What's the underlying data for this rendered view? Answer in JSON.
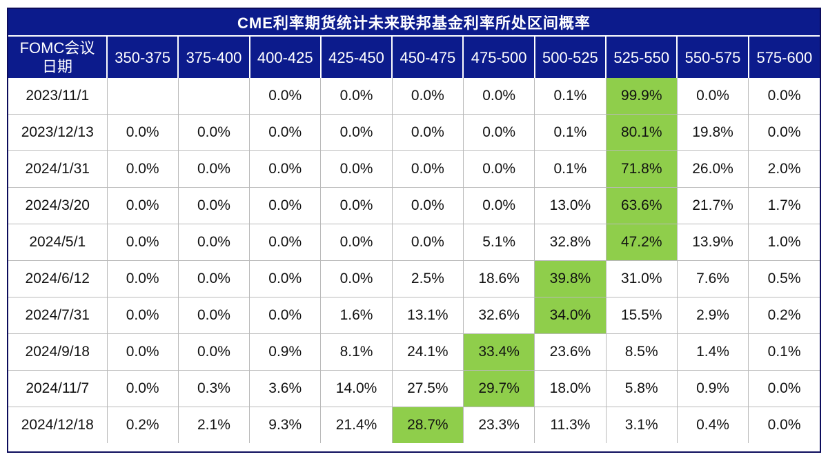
{
  "title": "CME利率期货统计未来联邦基金利率所处区间概率",
  "highlight_color": "#8fce4b",
  "header_color": "#0c1b8c",
  "chart_data": {
    "type": "table",
    "title": "CME利率期货统计未来联邦基金利率所处区间概率",
    "row_header_label": "FOMC会议日期",
    "columns": [
      "350-375",
      "375-400",
      "400-425",
      "425-450",
      "450-475",
      "475-500",
      "500-525",
      "525-550",
      "550-575",
      "575-600"
    ],
    "rows": [
      {
        "date": "2023/11/1",
        "values": [
          "",
          "",
          "0.0%",
          "0.0%",
          "0.0%",
          "0.0%",
          "0.1%",
          "99.9%",
          "0.0%",
          "0.0%"
        ],
        "max_index": 7
      },
      {
        "date": "2023/12/13",
        "values": [
          "0.0%",
          "0.0%",
          "0.0%",
          "0.0%",
          "0.0%",
          "0.0%",
          "0.1%",
          "80.1%",
          "19.8%",
          "0.0%"
        ],
        "max_index": 7
      },
      {
        "date": "2024/1/31",
        "values": [
          "0.0%",
          "0.0%",
          "0.0%",
          "0.0%",
          "0.0%",
          "0.0%",
          "0.1%",
          "71.8%",
          "26.0%",
          "2.0%"
        ],
        "max_index": 7
      },
      {
        "date": "2024/3/20",
        "values": [
          "0.0%",
          "0.0%",
          "0.0%",
          "0.0%",
          "0.0%",
          "0.0%",
          "13.0%",
          "63.6%",
          "21.7%",
          "1.7%"
        ],
        "max_index": 7
      },
      {
        "date": "2024/5/1",
        "values": [
          "0.0%",
          "0.0%",
          "0.0%",
          "0.0%",
          "0.0%",
          "5.1%",
          "32.8%",
          "47.2%",
          "13.9%",
          "1.0%"
        ],
        "max_index": 7
      },
      {
        "date": "2024/6/12",
        "values": [
          "0.0%",
          "0.0%",
          "0.0%",
          "0.0%",
          "2.5%",
          "18.6%",
          "39.8%",
          "31.0%",
          "7.6%",
          "0.5%"
        ],
        "max_index": 6
      },
      {
        "date": "2024/7/31",
        "values": [
          "0.0%",
          "0.0%",
          "0.0%",
          "1.6%",
          "13.1%",
          "32.6%",
          "34.0%",
          "15.5%",
          "2.9%",
          "0.2%"
        ],
        "max_index": 6
      },
      {
        "date": "2024/9/18",
        "values": [
          "0.0%",
          "0.0%",
          "0.9%",
          "8.1%",
          "24.1%",
          "33.4%",
          "23.6%",
          "8.5%",
          "1.4%",
          "0.1%"
        ],
        "max_index": 5
      },
      {
        "date": "2024/11/7",
        "values": [
          "0.0%",
          "0.3%",
          "3.6%",
          "14.0%",
          "27.5%",
          "29.7%",
          "18.0%",
          "5.8%",
          "0.9%",
          "0.0%"
        ],
        "max_index": 5
      },
      {
        "date": "2024/12/18",
        "values": [
          "0.2%",
          "2.1%",
          "9.3%",
          "21.4%",
          "28.7%",
          "23.3%",
          "11.3%",
          "3.1%",
          "0.4%",
          "0.0%"
        ],
        "max_index": 4
      }
    ]
  }
}
